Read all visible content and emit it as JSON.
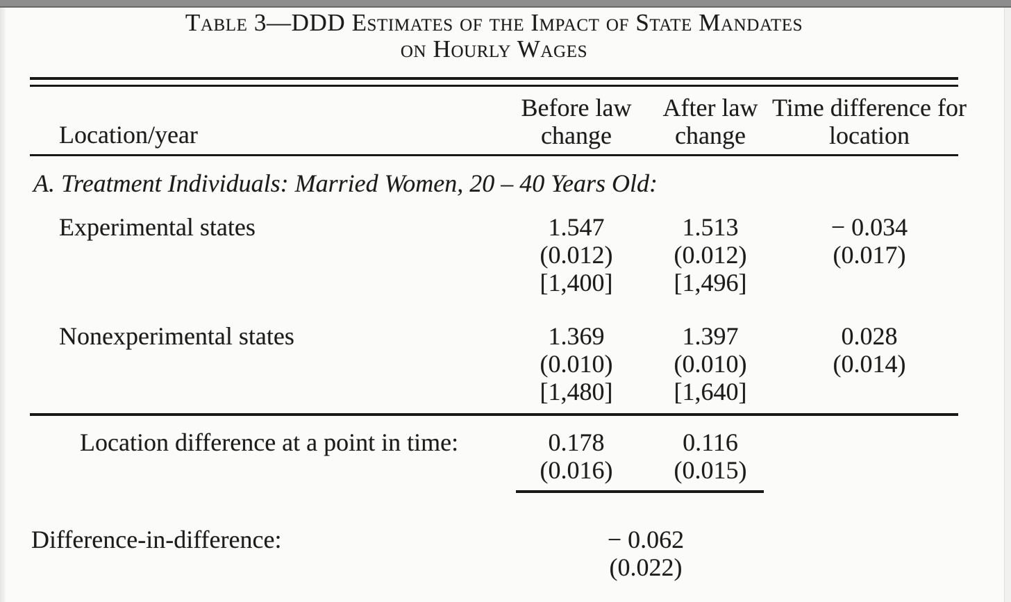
{
  "colors": {
    "paper": "#fbfbf9",
    "ink": "#1b1b1b",
    "scan_bar_gray": "#8d8d8d"
  },
  "title": {
    "line1": "Table 3—DDD Estimates of the Impact of State Mandates",
    "line2": "on Hourly Wages"
  },
  "header": {
    "location_year": "Location/year",
    "before_law": "Before law change",
    "after_law": "After law change",
    "time_difference": "Time difference for location"
  },
  "panel_a": {
    "heading": "A. Treatment Individuals: Married Women, 20 – 40 Years Old:"
  },
  "rows": {
    "experimental": {
      "label": "Experimental states",
      "before": [
        "1.547",
        "(0.012)",
        "[1,400]"
      ],
      "after": [
        "1.513",
        "(0.012)",
        "[1,496]"
      ],
      "time_diff": [
        "− 0.034",
        "(0.017)"
      ]
    },
    "nonexperimental": {
      "label": "Nonexperimental states",
      "before": [
        "1.369",
        "(0.010)",
        "[1,480]"
      ],
      "after": [
        "1.397",
        "(0.010)",
        "[1,640]"
      ],
      "time_diff": [
        "0.028",
        "(0.014)"
      ]
    }
  },
  "location_difference": {
    "label": "Location difference at a point in time:",
    "before": [
      "0.178",
      "(0.016)"
    ],
    "after": [
      "0.116",
      "(0.015)"
    ]
  },
  "difference_in_difference": {
    "label": "Difference-in-difference:",
    "value": "− 0.062",
    "se": "(0.022)"
  }
}
